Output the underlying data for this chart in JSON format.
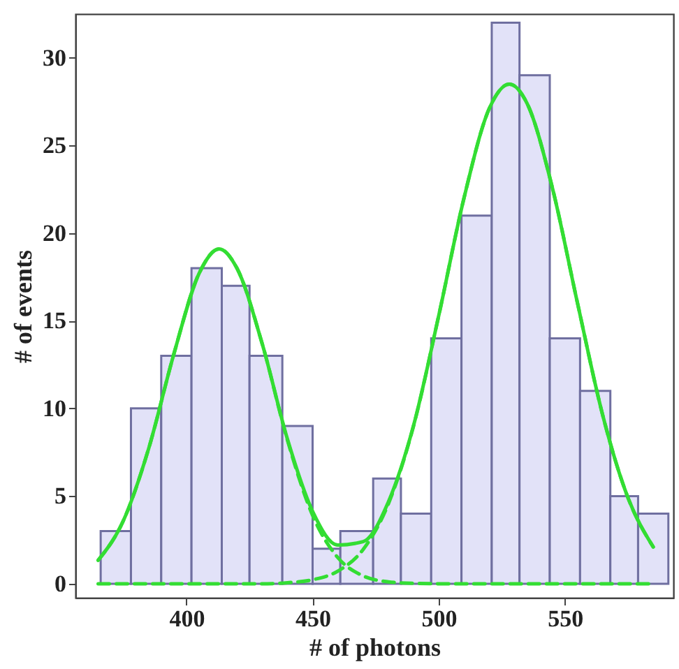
{
  "chart_data": {
    "type": "histogram",
    "xlabel": "# of photons",
    "ylabel": "# of events",
    "bins": [
      366,
      378,
      390,
      402,
      414,
      425,
      438,
      450,
      461,
      474,
      485,
      497,
      509,
      521,
      532,
      544,
      556,
      568,
      579,
      591
    ],
    "values": [
      3,
      10,
      13,
      18,
      17,
      13,
      9,
      2,
      3,
      6,
      4,
      14,
      21,
      32,
      29,
      14,
      11,
      5,
      4
    ],
    "color": "#e2e2f8",
    "series": [
      {
        "type": "line",
        "color": "#33dd33",
        "line_style": "dashed",
        "x": [
          365,
          375,
          385,
          395,
          405,
          413,
          420,
          430,
          440,
          450,
          460,
          470,
          480,
          490,
          500,
          510,
          520,
          528,
          535,
          545,
          555,
          565,
          575,
          585
        ],
        "values": [
          1.34,
          3.6,
          7.7,
          13.1,
          17.7,
          19.1,
          18.0,
          13.7,
          8.2,
          3.9,
          1.49,
          0.45,
          0.11,
          0.02,
          0,
          0,
          0,
          0,
          0,
          0,
          0,
          0,
          0,
          0
        ]
      },
      {
        "type": "line",
        "color": "#33dd33",
        "line_style": "dashed",
        "x": [
          365,
          375,
          385,
          395,
          405,
          413,
          420,
          430,
          440,
          450,
          460,
          470,
          480,
          490,
          500,
          510,
          520,
          528,
          535,
          545,
          555,
          565,
          575,
          585
        ],
        "values": [
          0,
          0,
          0,
          0,
          0,
          0,
          0,
          0,
          0.06,
          0.23,
          0.72,
          1.95,
          4.55,
          9.0,
          15.3,
          22.0,
          27.1,
          28.5,
          27.4,
          22.6,
          16.0,
          9.6,
          4.9,
          2.1
        ]
      },
      {
        "type": "line",
        "color": "#33dd33",
        "line_style": "solid",
        "x": [
          365,
          375,
          385,
          395,
          405,
          413,
          420,
          430,
          440,
          450,
          460,
          470,
          480,
          490,
          500,
          510,
          520,
          528,
          535,
          545,
          555,
          565,
          575,
          585
        ],
        "values": [
          1.34,
          3.6,
          7.7,
          13.1,
          17.7,
          19.1,
          18.0,
          13.7,
          8.26,
          4.13,
          2.21,
          2.4,
          4.66,
          9.02,
          15.3,
          22.0,
          27.1,
          28.5,
          27.4,
          22.6,
          16.0,
          9.6,
          4.9,
          2.1
        ]
      }
    ],
    "xlim": [
      356,
      593
    ],
    "xticks": [
      400,
      450,
      500,
      550
    ],
    "ylim": [
      -0.8,
      32.5
    ],
    "yticks": [
      0,
      5,
      10,
      15,
      20,
      25,
      30
    ],
    "grid": false
  }
}
